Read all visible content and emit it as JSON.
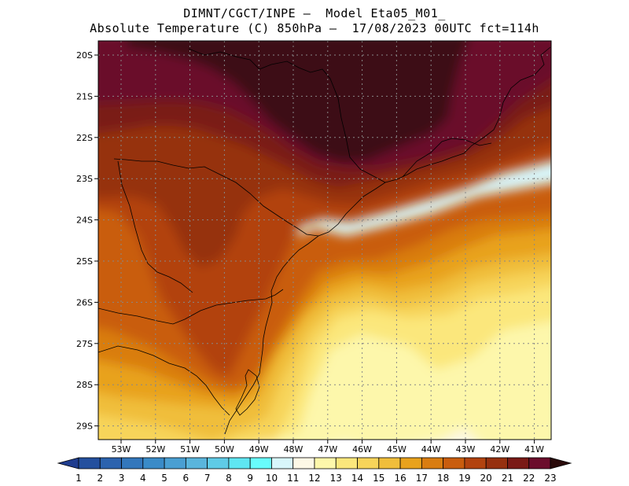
{
  "title": {
    "line1": "DIMNT/CGCT/INPE —  Model Eta05_M01_",
    "line2": "Absolute Temperature (C) 850hPa —  17/08/2023 00UTC fct=114h"
  },
  "axes": {
    "lat_labels": [
      "20S",
      "21S",
      "22S",
      "23S",
      "24S",
      "25S",
      "26S",
      "27S",
      "28S",
      "29S"
    ],
    "lon_labels": [
      "53W",
      "52W",
      "51W",
      "50W",
      "49W",
      "48W",
      "47W",
      "46W",
      "45W",
      "44W",
      "43W",
      "42W",
      "41W"
    ]
  },
  "colorbar": {
    "levels": [
      "1",
      "2",
      "3",
      "4",
      "5",
      "6",
      "7",
      "8",
      "9",
      "10",
      "11",
      "12",
      "13",
      "14",
      "15",
      "16",
      "17",
      "18",
      "19",
      "20",
      "21",
      "22",
      "23"
    ],
    "colors": [
      "#1f3d8f",
      "#24509e",
      "#2c63ae",
      "#3377bc",
      "#3a8bc8",
      "#4a9fd2",
      "#5ab5dc",
      "#5fcbe6",
      "#5fe6f2",
      "#68fcfc",
      "#d8f6fb",
      "#fdf8e6",
      "#fdf7ab",
      "#fbe77c",
      "#f7d45a",
      "#f0be3b",
      "#e8a21d",
      "#d97d11",
      "#c95d0e",
      "#b2430f",
      "#96300f",
      "#7a1a16",
      "#6b0d2c",
      "#4a0b14",
      "#2a0a0a"
    ]
  },
  "field": {
    "band_colors": [
      "#d8f6fb",
      "#fdf8e6",
      "#fdf7ab",
      "#fbe77c",
      "#f7d45a",
      "#f0be3b",
      "#e8a21d",
      "#d97d11",
      "#c95d0e",
      "#b2430f",
      "#96300f",
      "#7a1a16",
      "#6b0d2c",
      "#3c0d14"
    ]
  }
}
